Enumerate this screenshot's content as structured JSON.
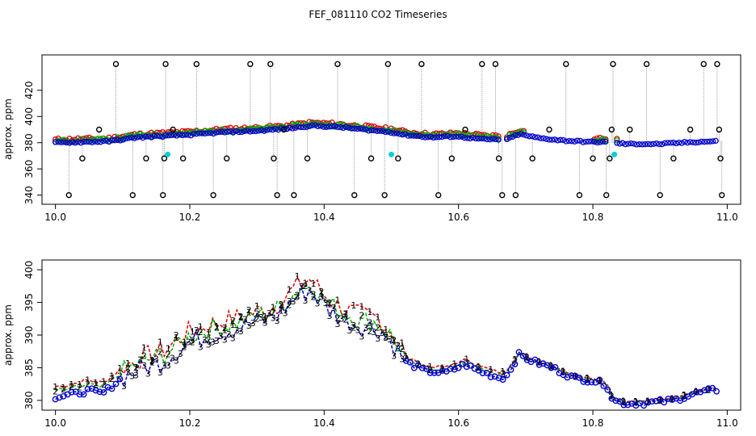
{
  "title": "FEF_081110  CO2 Timeseries",
  "colors": {
    "red": "#e00000",
    "green": "#00b000",
    "blue": "#0000cc",
    "cyan": "#00d0d0",
    "black": "#000000",
    "grey": "#9a9a9a"
  },
  "chart_data": [
    {
      "type": "scatter",
      "panel": "top",
      "ylabel": "approx. ppm",
      "xlim": [
        9.98,
        11.02
      ],
      "ylim": [
        333,
        447
      ],
      "xticks": [
        10.0,
        10.2,
        10.4,
        10.6,
        10.8,
        11.0
      ],
      "xtick_labels": [
        "10.0",
        "10.2",
        "10.4",
        "10.6",
        "10.8",
        "11.0"
      ],
      "yticks": [
        340,
        360,
        380,
        400,
        420
      ],
      "ytick_labels": [
        "340",
        "360",
        "380",
        "400",
        "420"
      ],
      "baseline_profile": [
        [
          10.0,
          380
        ],
        [
          10.04,
          380.5
        ],
        [
          10.08,
          381
        ],
        [
          10.12,
          384
        ],
        [
          10.16,
          385
        ],
        [
          10.2,
          386
        ],
        [
          10.25,
          388
        ],
        [
          10.3,
          389
        ],
        [
          10.35,
          391
        ],
        [
          10.38,
          393
        ],
        [
          10.42,
          392
        ],
        [
          10.46,
          390
        ],
        [
          10.5,
          388
        ],
        [
          10.52,
          386
        ],
        [
          10.56,
          384
        ],
        [
          10.6,
          385
        ],
        [
          10.64,
          383
        ],
        [
          10.66,
          383
        ],
        [
          10.67,
          382.5
        ],
        [
          10.69,
          387
        ],
        [
          10.72,
          384
        ],
        [
          10.76,
          382
        ],
        [
          10.8,
          381
        ],
        [
          10.82,
          381
        ],
        [
          10.83,
          380
        ],
        [
          10.85,
          379
        ],
        [
          10.9,
          379
        ],
        [
          10.95,
          380.5
        ],
        [
          10.98,
          381
        ]
      ],
      "outliers_black": [
        [
          10.02,
          340
        ],
        [
          10.04,
          368
        ],
        [
          10.065,
          390
        ],
        [
          10.09,
          440
        ],
        [
          10.115,
          340
        ],
        [
          10.135,
          368
        ],
        [
          10.16,
          340
        ],
        [
          10.162,
          368
        ],
        [
          10.164,
          440
        ],
        [
          10.175,
          390
        ],
        [
          10.19,
          368
        ],
        [
          10.21,
          440
        ],
        [
          10.235,
          340
        ],
        [
          10.255,
          368
        ],
        [
          10.29,
          440
        ],
        [
          10.32,
          440
        ],
        [
          10.325,
          368
        ],
        [
          10.33,
          340
        ],
        [
          10.34,
          390
        ],
        [
          10.355,
          340
        ],
        [
          10.375,
          368
        ],
        [
          10.42,
          440
        ],
        [
          10.445,
          340
        ],
        [
          10.47,
          368
        ],
        [
          10.49,
          340
        ],
        [
          10.495,
          440
        ],
        [
          10.51,
          368
        ],
        [
          10.545,
          440
        ],
        [
          10.57,
          340
        ],
        [
          10.59,
          368
        ],
        [
          10.61,
          390
        ],
        [
          10.635,
          440
        ],
        [
          10.655,
          440
        ],
        [
          10.66,
          368
        ],
        [
          10.665,
          340
        ],
        [
          10.685,
          340
        ],
        [
          10.71,
          368
        ],
        [
          10.735,
          390
        ],
        [
          10.76,
          440
        ],
        [
          10.78,
          340
        ],
        [
          10.8,
          368
        ],
        [
          10.82,
          340
        ],
        [
          10.825,
          368
        ],
        [
          10.828,
          390
        ],
        [
          10.83,
          440
        ],
        [
          10.855,
          390
        ],
        [
          10.88,
          440
        ],
        [
          10.9,
          340
        ],
        [
          10.92,
          368
        ],
        [
          10.945,
          390
        ],
        [
          10.965,
          440
        ],
        [
          10.985,
          440
        ],
        [
          10.988,
          390
        ],
        [
          10.99,
          368
        ],
        [
          10.992,
          340
        ]
      ],
      "cyan_points": [
        [
          10.167,
          371
        ],
        [
          10.5,
          371
        ],
        [
          10.832,
          371
        ]
      ],
      "series": [
        {
          "name": "1",
          "color": "red"
        },
        {
          "name": "2",
          "color": "green"
        },
        {
          "name": "3",
          "color": "blue"
        }
      ]
    },
    {
      "type": "line",
      "panel": "bottom",
      "ylabel": "approx. ppm",
      "xlim": [
        9.98,
        11.02
      ],
      "ylim": [
        378.5,
        401.5
      ],
      "xticks": [
        10.0,
        10.2,
        10.4,
        10.6,
        10.8,
        11.0
      ],
      "xtick_labels": [
        "10.0",
        "10.2",
        "10.4",
        "10.6",
        "10.8",
        "11.0"
      ],
      "yticks": [
        380,
        385,
        390,
        395,
        400
      ],
      "ytick_labels": [
        "380",
        "385",
        "390",
        "395",
        "400"
      ],
      "profile": [
        [
          10.0,
          380.5
        ],
        [
          10.02,
          380.8
        ],
        [
          10.05,
          381.5
        ],
        [
          10.07,
          381
        ],
        [
          10.1,
          383.5
        ],
        [
          10.13,
          385
        ],
        [
          10.16,
          386
        ],
        [
          10.2,
          389
        ],
        [
          10.23,
          390
        ],
        [
          10.27,
          391
        ],
        [
          10.3,
          392
        ],
        [
          10.33,
          393
        ],
        [
          10.36,
          396
        ],
        [
          10.38,
          397
        ],
        [
          10.4,
          394.5
        ],
        [
          10.42,
          393
        ],
        [
          10.45,
          391.5
        ],
        [
          10.48,
          391
        ],
        [
          10.5,
          389
        ],
        [
          10.52,
          386
        ],
        [
          10.55,
          384.5
        ],
        [
          10.58,
          384.2
        ],
        [
          10.61,
          385.5
        ],
        [
          10.63,
          384.5
        ],
        [
          10.66,
          383.5
        ],
        [
          10.67,
          383.5
        ],
        [
          10.69,
          387
        ],
        [
          10.71,
          386
        ],
        [
          10.74,
          385
        ],
        [
          10.77,
          383.5
        ],
        [
          10.8,
          383
        ],
        [
          10.82,
          382.5
        ],
        [
          10.83,
          380
        ],
        [
          10.85,
          379.5
        ],
        [
          10.88,
          379.6
        ],
        [
          10.92,
          380
        ],
        [
          10.95,
          381
        ],
        [
          10.98,
          381.6
        ]
      ],
      "series": [
        {
          "name": "1",
          "color": "red",
          "offset": 1.6
        },
        {
          "name": "2",
          "color": "green",
          "offset": 0.9
        },
        {
          "name": "3",
          "color": "blue",
          "offset": 0
        }
      ]
    }
  ]
}
